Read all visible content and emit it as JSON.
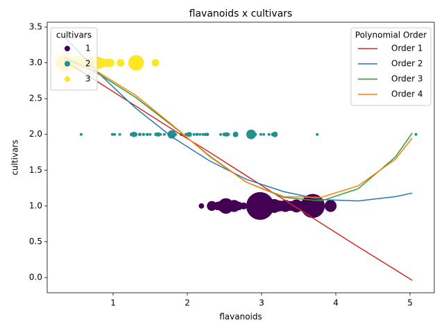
{
  "chart_data": {
    "type": "scatter",
    "title": "flavanoids x cultivars",
    "xlabel": "flavanoids",
    "ylabel": "cultivars",
    "xlim": [
      0.112,
      5.327
    ],
    "ylim": [
      -0.213,
      3.568
    ],
    "xticks": [
      1,
      2,
      3,
      4,
      5
    ],
    "yticks": [
      {
        "value": 0,
        "label": "0.0"
      },
      {
        "value": 0.5,
        "label": "0.5"
      },
      {
        "value": 1,
        "label": "1.0"
      },
      {
        "value": 1.5,
        "label": "1.5"
      },
      {
        "value": 2,
        "label": "2.0"
      },
      {
        "value": 2.5,
        "label": "2.5"
      },
      {
        "value": 3,
        "label": "3.0"
      },
      {
        "value": 3.5,
        "label": "3.5"
      }
    ],
    "legend": {
      "title": "cultivars",
      "loc": "upper left"
    },
    "series": [
      {
        "name": "1",
        "color": "#440154",
        "x": [
          2.19,
          2.33,
          2.41,
          2.47,
          2.52,
          2.58,
          2.63,
          2.69,
          2.76,
          2.86,
          2.89,
          2.98,
          3.03,
          3.1,
          3.17,
          3.24,
          3.32,
          3.39,
          3.47,
          3.54,
          3.59,
          3.64,
          3.69,
          3.74,
          3.93
        ],
        "values": [
          1,
          1,
          1,
          1,
          1,
          1,
          1,
          1,
          1,
          1,
          1,
          1,
          1,
          1,
          1,
          1,
          1,
          1,
          1,
          1,
          1,
          1,
          1,
          1,
          1
        ],
        "sizes": [
          60,
          200,
          150,
          250,
          500,
          120,
          300,
          150,
          100,
          150,
          200,
          1600,
          300,
          150,
          400,
          250,
          300,
          200,
          350,
          200,
          250,
          300,
          1200,
          250,
          300
        ]
      },
      {
        "name": "2",
        "color": "#21918c",
        "x": [
          0.57,
          0.99,
          1.02,
          1.09,
          1.25,
          1.28,
          1.3,
          1.36,
          1.41,
          1.46,
          1.5,
          1.58,
          1.61,
          1.64,
          1.69,
          1.75,
          1.79,
          1.84,
          1.92,
          1.98,
          2.01,
          2.03,
          2.09,
          2.13,
          2.17,
          2.21,
          2.24,
          2.27,
          2.45,
          2.5,
          2.53,
          2.55,
          2.65,
          2.86,
          2.92,
          2.99,
          3.03,
          3.1,
          3.15,
          3.18,
          3.75,
          5.08
        ],
        "values": [
          2,
          2,
          2,
          2,
          2,
          2,
          2,
          2,
          2,
          2,
          2,
          2,
          2,
          2,
          2,
          2,
          2,
          2,
          2,
          2,
          2,
          2,
          2,
          2,
          2,
          2,
          2,
          2,
          2,
          2,
          2,
          2,
          2,
          2,
          2,
          2,
          2,
          2,
          2,
          2,
          2,
          2
        ],
        "sizes": [
          16,
          16,
          16,
          16,
          30,
          60,
          40,
          25,
          20,
          20,
          16,
          30,
          40,
          16,
          16,
          16,
          144,
          20,
          25,
          16,
          40,
          50,
          16,
          20,
          16,
          16,
          20,
          25,
          16,
          30,
          40,
          25,
          64,
          196,
          16,
          16,
          16,
          16,
          25,
          64,
          16,
          16
        ]
      },
      {
        "name": "3",
        "color": "#fde725",
        "x": [
          0.34,
          0.47,
          0.52,
          0.58,
          0.61,
          0.63,
          0.66,
          0.7,
          0.75,
          0.8,
          0.84,
          0.92,
          0.96,
          1.1,
          1.25,
          1.31,
          1.57
        ],
        "values": [
          3,
          3,
          3,
          3,
          3,
          3,
          3,
          3,
          3,
          3,
          3,
          3,
          3,
          3,
          3,
          3,
          3
        ],
        "sizes": [
          600,
          300,
          400,
          200,
          250,
          200,
          150,
          300,
          250,
          300,
          200,
          150,
          150,
          120,
          100,
          500,
          120
        ]
      }
    ],
    "fits": {
      "legend_title": "Polynomial Order",
      "loc": "upper right",
      "series": [
        {
          "name": "Order 1",
          "color": "#d62728",
          "x": [
            0.34,
            0.8,
            1.3,
            1.8,
            2.3,
            2.8,
            3.3,
            3.8,
            4.3,
            4.8,
            5.03
          ],
          "values": [
            3.03,
            2.73,
            2.4,
            2.07,
            1.75,
            1.42,
            1.09,
            0.76,
            0.43,
            0.11,
            -0.04
          ]
        },
        {
          "name": "Order 2",
          "color": "#1f77b4",
          "x": [
            0.34,
            0.8,
            1.3,
            1.8,
            2.3,
            2.8,
            3.3,
            3.8,
            4.3,
            4.8,
            5.03
          ],
          "values": [
            3.37,
            2.86,
            2.37,
            1.96,
            1.63,
            1.37,
            1.2,
            1.09,
            1.07,
            1.13,
            1.18
          ]
        },
        {
          "name": "Order 3",
          "color": "#2ca02c",
          "x": [
            0.34,
            0.8,
            1.3,
            1.8,
            2.3,
            2.8,
            3.3,
            3.8,
            4.3,
            4.8,
            5.03
          ],
          "values": [
            3.08,
            2.85,
            2.52,
            2.12,
            1.7,
            1.33,
            1.12,
            1.07,
            1.24,
            1.68,
            2.02
          ]
        },
        {
          "name": "Order 4",
          "color": "#ff7f0e",
          "x": [
            0.34,
            0.8,
            1.3,
            1.8,
            2.3,
            2.8,
            3.3,
            3.8,
            4.3,
            4.8,
            5.03
          ],
          "values": [
            3.05,
            2.87,
            2.55,
            2.13,
            1.69,
            1.33,
            1.13,
            1.12,
            1.28,
            1.65,
            1.95
          ]
        }
      ]
    }
  }
}
